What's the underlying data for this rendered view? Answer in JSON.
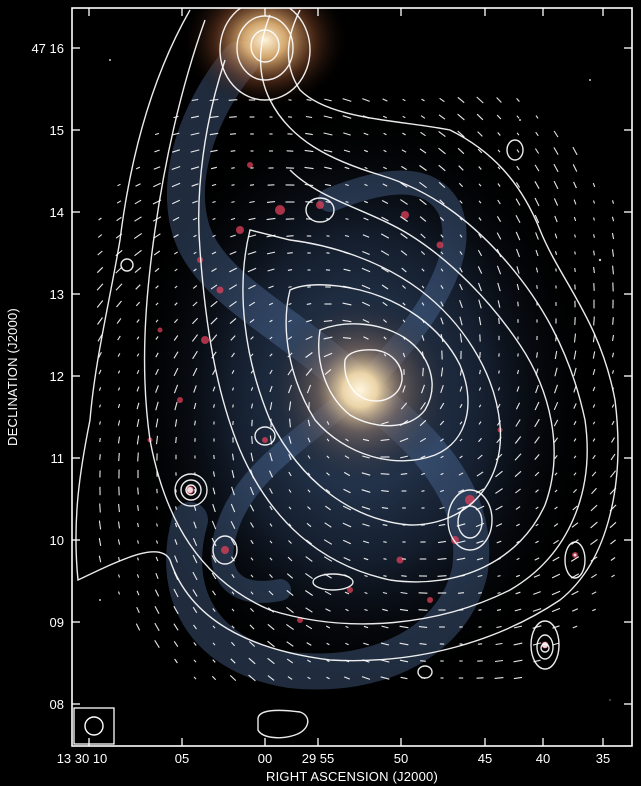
{
  "figure": {
    "x_axis_label": "RIGHT ASCENSION (J2000)",
    "y_axis_label": "DECLINATION (J2000)",
    "x_ticks": [
      "13 30 10",
      "05",
      "00",
      "29 55",
      "50",
      "45",
      "40",
      "35"
    ],
    "y_ticks": [
      "47 16",
      "15",
      "14",
      "13",
      "12",
      "11",
      "10",
      "09",
      "08"
    ],
    "beam_marker": "synthesized-beam-circle",
    "colors": {
      "background": "#000000",
      "frame": "#ffffff",
      "contours": "#ffffff",
      "galaxy_core": "#f6e7c8",
      "spiral_arms": "#5a7aa8",
      "hii_regions": "#e0405a"
    }
  }
}
